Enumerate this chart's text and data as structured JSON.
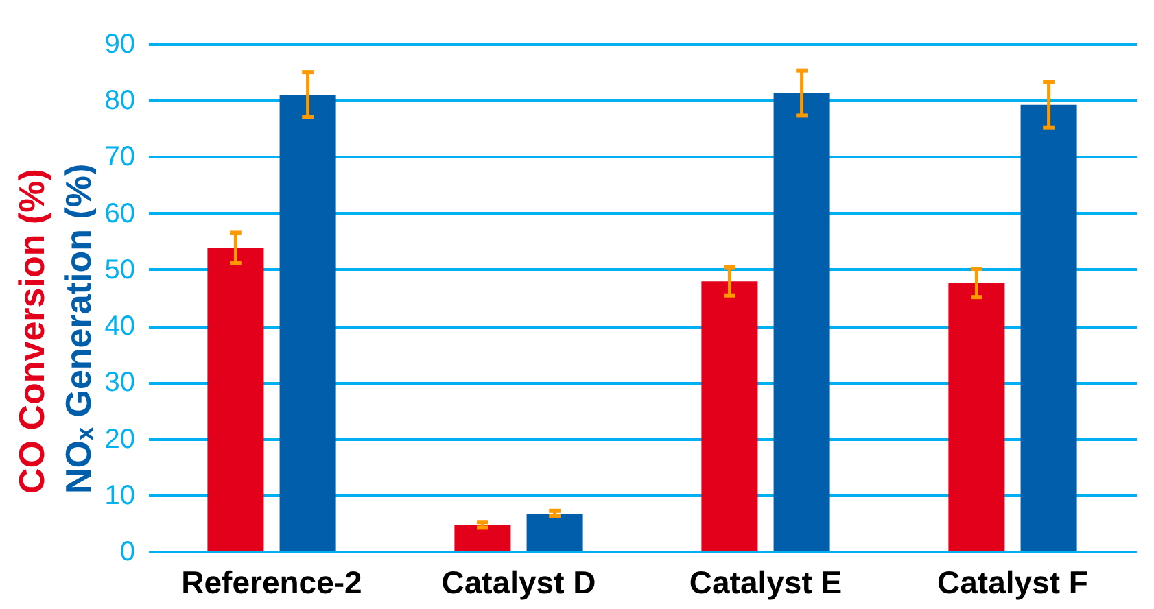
{
  "chart_data": {
    "type": "bar",
    "categories": [
      "Reference-2",
      "Catalyst D",
      "Catalyst E",
      "Catalyst F"
    ],
    "series": [
      {
        "name": "CO Conversion (%)",
        "color": "#e2001a",
        "values": [
          53.8,
          4.7,
          47.9,
          47.6
        ],
        "errors": [
          2.7,
          0.5,
          2.5,
          2.5
        ]
      },
      {
        "name": "NOₓ Generation (%)",
        "color": "#005eaa",
        "values": [
          81,
          6.7,
          81.3,
          79.2
        ],
        "errors": [
          4,
          0.5,
          4,
          4
        ]
      }
    ],
    "ylim": [
      0,
      90
    ],
    "yticks": [
      0,
      10,
      20,
      30,
      40,
      50,
      60,
      70,
      80,
      90
    ],
    "grid": "y",
    "legend": false
  }
}
